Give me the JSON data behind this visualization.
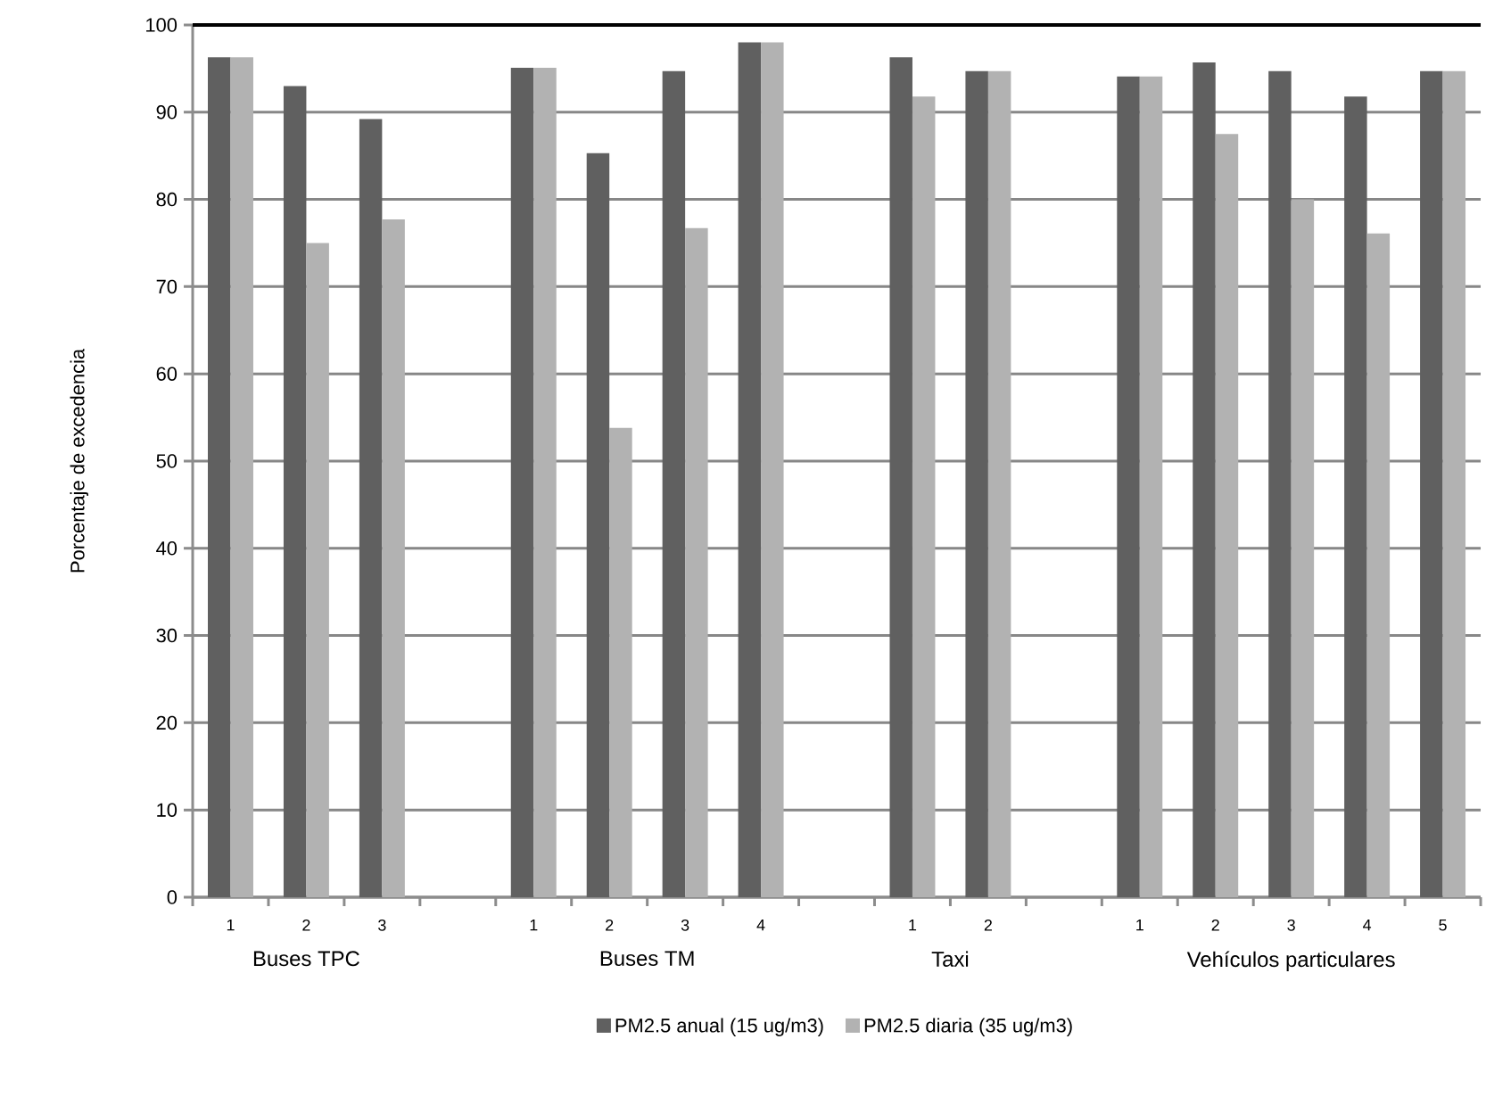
{
  "chart_data": {
    "type": "bar",
    "ylabel": "Porcentaje de excedencia",
    "categories": [
      "1",
      "2",
      "3",
      null,
      "1",
      "2",
      "3",
      "4",
      null,
      "1",
      "2",
      null,
      "1",
      "2",
      "3",
      "4",
      "5"
    ],
    "annotations": [
      "Buses TPC",
      "Buses TM",
      "Taxi",
      "Vehículos particulares"
    ],
    "series": [
      {
        "name": "PM2.5 anual (15 ug/m3)",
        "color": "#606060",
        "values": [
          96.3,
          93.0,
          89.2,
          null,
          95.1,
          85.3,
          94.7,
          98.0,
          null,
          96.3,
          94.7,
          null,
          94.1,
          95.7,
          94.7,
          91.8,
          94.7
        ]
      },
      {
        "name": "PM2.5 diaria (35 ug/m3)",
        "color": "#b2b2b2",
        "values": [
          96.3,
          75.0,
          77.7,
          null,
          95.1,
          53.8,
          76.7,
          98.0,
          null,
          91.8,
          94.7,
          null,
          94.1,
          87.5,
          80.0,
          76.1,
          94.7
        ]
      }
    ],
    "ylim": [
      0,
      100
    ],
    "yticks": [
      0,
      10,
      20,
      30,
      40,
      50,
      60,
      70,
      80,
      90,
      100
    ],
    "grid": "y",
    "legend": "bottom"
  }
}
